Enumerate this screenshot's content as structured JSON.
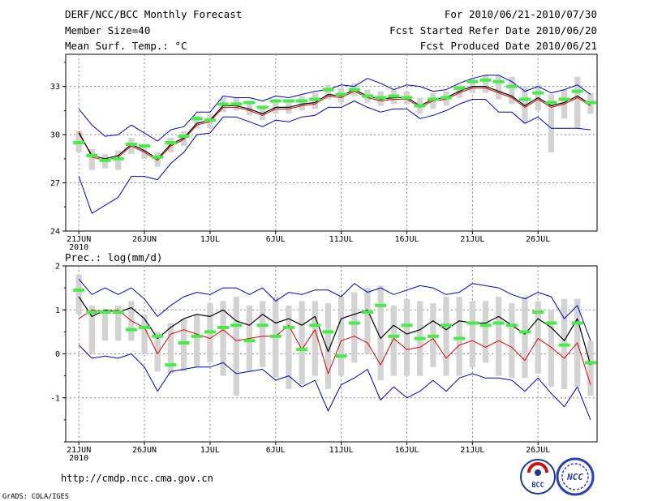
{
  "header": {
    "title": "DERF/NCC/BCC Monthly Forecast",
    "member_size": "Member Size=40",
    "variable1": "Mean Surf. Temp.: °C",
    "for_range": "For 2010/06/21-2010/07/30",
    "fcst_started": "Fcst Started Refer Date 2010/06/20",
    "fcst_produced": "Fcst Produced Date 2010/06/21"
  },
  "footer": {
    "url": "http://cmdp.ncc.cma.gov.cn",
    "grads": "GrADS: COLA/IGES",
    "logo1_text": "BCC",
    "logo2_text": "NCC"
  },
  "colors": {
    "envelope": "#0000cc",
    "ensemble_mean": "#000000",
    "control": "#dd0000",
    "bar": "#d3d3d3",
    "median": "#44ee44",
    "grid": "#888888"
  },
  "chart_data": [
    {
      "type": "line",
      "title": "Mean Surf. Temp.: °C",
      "x_tick_labels": [
        "21JUN",
        "26JUN",
        "1JUL",
        "6JUL",
        "11JUL",
        "16JUL",
        "21JUL",
        "26JUL"
      ],
      "x_tick_days": [
        0,
        5,
        10,
        15,
        20,
        25,
        30,
        35
      ],
      "year_label": "2010",
      "xlim": [
        -1,
        39.5
      ],
      "ylim": [
        24,
        35
      ],
      "y_ticks": [
        24,
        27,
        30,
        33
      ],
      "days": [
        0,
        1,
        2,
        3,
        4,
        5,
        6,
        7,
        8,
        9,
        10,
        11,
        12,
        13,
        14,
        15,
        16,
        17,
        18,
        19,
        20,
        21,
        22,
        23,
        24,
        25,
        26,
        27,
        28,
        29,
        30,
        31,
        32,
        33,
        34,
        35,
        36,
        37,
        38,
        39
      ],
      "series": [
        {
          "name": "max",
          "values": [
            31.6,
            30.6,
            29.9,
            30.0,
            30.6,
            30.1,
            29.6,
            30.3,
            30.5,
            31.4,
            31.4,
            32.4,
            32.3,
            32.3,
            32.1,
            32.4,
            32.3,
            32.5,
            32.7,
            32.8,
            33.1,
            33.0,
            33.5,
            33.2,
            32.8,
            33.1,
            33.0,
            32.7,
            32.8,
            33.2,
            33.5,
            33.7,
            33.7,
            33.3,
            32.7,
            33.0,
            32.6,
            32.8,
            33.1,
            32.5
          ]
        },
        {
          "name": "mean",
          "values": [
            30.1,
            28.7,
            28.5,
            28.7,
            29.4,
            29.0,
            28.5,
            29.4,
            29.8,
            30.7,
            30.9,
            31.8,
            31.8,
            31.6,
            31.3,
            31.7,
            31.7,
            31.9,
            32.0,
            32.5,
            32.4,
            32.8,
            32.4,
            32.2,
            32.3,
            32.3,
            31.8,
            32.2,
            32.3,
            32.7,
            33.0,
            33.0,
            32.7,
            32.4,
            31.8,
            32.3,
            31.8,
            32.0,
            32.4,
            31.9
          ]
        },
        {
          "name": "control",
          "values": [
            30.2,
            28.6,
            28.4,
            28.6,
            29.3,
            28.9,
            28.4,
            29.3,
            29.7,
            30.6,
            30.8,
            31.7,
            31.7,
            31.5,
            31.2,
            31.6,
            31.6,
            31.8,
            31.9,
            32.4,
            32.3,
            32.7,
            32.3,
            32.1,
            32.2,
            32.2,
            31.7,
            32.1,
            32.2,
            32.6,
            32.9,
            32.9,
            32.6,
            32.3,
            31.7,
            32.2,
            31.7,
            31.9,
            32.3,
            31.8
          ]
        },
        {
          "name": "min",
          "values": [
            27.4,
            25.1,
            25.6,
            26.1,
            27.4,
            27.4,
            27.2,
            28.2,
            28.9,
            30.0,
            30.1,
            31.1,
            31.1,
            30.8,
            30.5,
            30.9,
            30.8,
            31.1,
            31.2,
            31.7,
            31.7,
            32.1,
            31.7,
            31.4,
            31.6,
            31.6,
            31.0,
            31.2,
            31.5,
            31.9,
            32.2,
            32.2,
            31.4,
            31.4,
            30.7,
            31.1,
            30.4,
            30.4,
            30.4,
            30.3
          ]
        },
        {
          "name": "median",
          "values": [
            29.5,
            28.7,
            28.4,
            28.5,
            29.4,
            29.3,
            28.6,
            29.5,
            29.9,
            31.0,
            30.9,
            31.9,
            31.9,
            32.0,
            31.7,
            32.1,
            32.1,
            32.1,
            32.2,
            32.8,
            32.5,
            32.8,
            32.4,
            32.3,
            32.4,
            32.3,
            31.8,
            32.2,
            32.3,
            32.9,
            33.3,
            33.4,
            33.3,
            33.0,
            32.2,
            32.6,
            32.0,
            32.2,
            32.7,
            32.0
          ]
        }
      ],
      "bars": {
        "low": [
          28.9,
          27.8,
          27.9,
          27.8,
          28.8,
          28.5,
          28.0,
          28.9,
          29.3,
          30.4,
          30.4,
          31.4,
          31.5,
          31.2,
          30.9,
          31.3,
          31.3,
          31.5,
          31.6,
          32.2,
          32.0,
          32.4,
          32.0,
          31.8,
          31.9,
          31.9,
          31.3,
          31.6,
          31.8,
          32.3,
          32.6,
          32.6,
          32.2,
          31.9,
          30.7,
          31.5,
          28.9,
          31.0,
          30.4,
          31.3
        ],
        "high": [
          30.2,
          29.1,
          28.8,
          29.0,
          29.8,
          29.4,
          28.9,
          29.8,
          30.2,
          31.2,
          31.3,
          32.3,
          32.3,
          32.1,
          31.8,
          32.2,
          32.2,
          32.4,
          32.6,
          33.1,
          32.9,
          33.2,
          32.8,
          32.7,
          32.8,
          32.7,
          32.3,
          32.6,
          32.7,
          33.1,
          33.5,
          33.7,
          33.7,
          33.6,
          33.0,
          33.1,
          32.5,
          32.8,
          33.6,
          32.6
        ]
      }
    },
    {
      "type": "line",
      "title": "Prec.: log(mm/d)",
      "x_tick_labels": [
        "21JUN",
        "26JUN",
        "1JUL",
        "6JUL",
        "11JUL",
        "16JUL",
        "21JUL",
        "26JUL"
      ],
      "x_tick_days": [
        0,
        5,
        10,
        15,
        20,
        25,
        30,
        35
      ],
      "year_label": "2010",
      "xlim": [
        -1,
        39.5
      ],
      "ylim": [
        -2,
        2
      ],
      "y_ticks": [
        -1,
        0,
        1,
        2
      ],
      "days": [
        0,
        1,
        2,
        3,
        4,
        5,
        6,
        7,
        8,
        9,
        10,
        11,
        12,
        13,
        14,
        15,
        16,
        17,
        18,
        19,
        20,
        21,
        22,
        23,
        24,
        25,
        26,
        27,
        28,
        29,
        30,
        31,
        32,
        33,
        34,
        35,
        36,
        37,
        38,
        39
      ],
      "series": [
        {
          "name": "max",
          "values": [
            1.7,
            1.35,
            1.5,
            1.35,
            1.5,
            1.25,
            0.85,
            1.1,
            1.3,
            1.4,
            1.35,
            1.5,
            1.5,
            1.35,
            1.5,
            1.2,
            1.4,
            1.35,
            1.45,
            1.45,
            1.3,
            1.6,
            1.4,
            1.5,
            1.35,
            1.45,
            1.55,
            1.5,
            1.35,
            1.4,
            1.6,
            1.55,
            1.5,
            1.35,
            1.25,
            1.4,
            1.3,
            0.8,
            1.1,
            0.3
          ]
        },
        {
          "name": "mean",
          "values": [
            1.3,
            0.85,
            1.0,
            0.95,
            1.05,
            0.8,
            0.35,
            0.6,
            0.8,
            0.9,
            0.85,
            1.0,
            0.75,
            0.65,
            0.9,
            0.7,
            0.8,
            0.65,
            0.85,
            0.05,
            0.8,
            0.9,
            1.0,
            0.35,
            0.65,
            0.45,
            0.55,
            0.75,
            0.55,
            0.75,
            0.7,
            0.7,
            0.85,
            0.65,
            0.45,
            0.8,
            0.6,
            0.3,
            0.8,
            -0.25
          ]
        },
        {
          "name": "control",
          "values": [
            0.8,
            1.0,
            0.95,
            1.0,
            0.75,
            0.6,
            0.0,
            0.45,
            0.55,
            0.45,
            0.35,
            0.55,
            0.3,
            0.35,
            0.4,
            0.4,
            0.65,
            0.1,
            0.55,
            -0.45,
            0.3,
            0.4,
            0.25,
            -0.25,
            0.35,
            0.1,
            0.15,
            0.35,
            -0.1,
            0.2,
            0.3,
            0.15,
            0.3,
            0.15,
            -0.15,
            0.35,
            0.15,
            -0.1,
            0.25,
            -0.7
          ]
        },
        {
          "name": "min",
          "values": [
            0.2,
            -0.1,
            -0.05,
            -0.1,
            0.0,
            -0.3,
            -0.85,
            -0.4,
            -0.35,
            -0.3,
            -0.3,
            -0.2,
            -0.45,
            -0.4,
            -0.35,
            -0.6,
            -0.5,
            -0.75,
            -0.6,
            -1.3,
            -0.7,
            -0.55,
            -0.35,
            -1.05,
            -0.75,
            -1.0,
            -0.85,
            -0.6,
            -0.85,
            -0.55,
            -0.45,
            -0.55,
            -0.55,
            -0.6,
            -0.85,
            -0.55,
            -0.9,
            -1.2,
            -0.75,
            -1.5
          ]
        },
        {
          "name": "median",
          "values": [
            1.45,
            0.95,
            0.95,
            0.95,
            0.55,
            0.6,
            0.4,
            -0.25,
            0.25,
            0.4,
            0.5,
            0.6,
            0.65,
            0.3,
            0.65,
            0.4,
            0.6,
            0.1,
            0.65,
            0.5,
            -0.05,
            0.7,
            0.95,
            1.1,
            0.4,
            0.65,
            0.35,
            0.4,
            0.65,
            0.35,
            0.7,
            0.65,
            0.7,
            0.65,
            0.5,
            0.95,
            0.7,
            0.2,
            0.7,
            -0.2
          ]
        }
      ],
      "bars": {
        "low": [
          0.9,
          0.0,
          0.3,
          0.3,
          0.3,
          0.0,
          -0.4,
          -0.45,
          -0.4,
          -0.3,
          -0.2,
          -0.5,
          -0.95,
          -0.4,
          -0.3,
          -0.55,
          -0.8,
          -0.7,
          -0.5,
          -0.8,
          -0.5,
          -0.2,
          0.0,
          -0.6,
          -0.5,
          -0.5,
          -0.5,
          -0.3,
          -0.5,
          -0.5,
          -0.3,
          -0.2,
          -0.5,
          -0.55,
          -0.55,
          -0.45,
          -0.75,
          -0.8,
          -0.75,
          -0.95
        ],
        "high": [
          1.8,
          1.1,
          1.0,
          1.1,
          1.2,
          0.9,
          0.5,
          0.7,
          0.8,
          0.9,
          1.15,
          1.2,
          1.3,
          1.1,
          1.2,
          1.3,
          1.1,
          1.2,
          1.2,
          1.15,
          1.3,
          1.4,
          1.5,
          1.55,
          1.1,
          1.25,
          1.2,
          1.15,
          1.3,
          1.3,
          1.2,
          1.2,
          1.3,
          1.15,
          1.3,
          1.2,
          1.0,
          1.25,
          1.25,
          0.3
        ]
      }
    }
  ]
}
